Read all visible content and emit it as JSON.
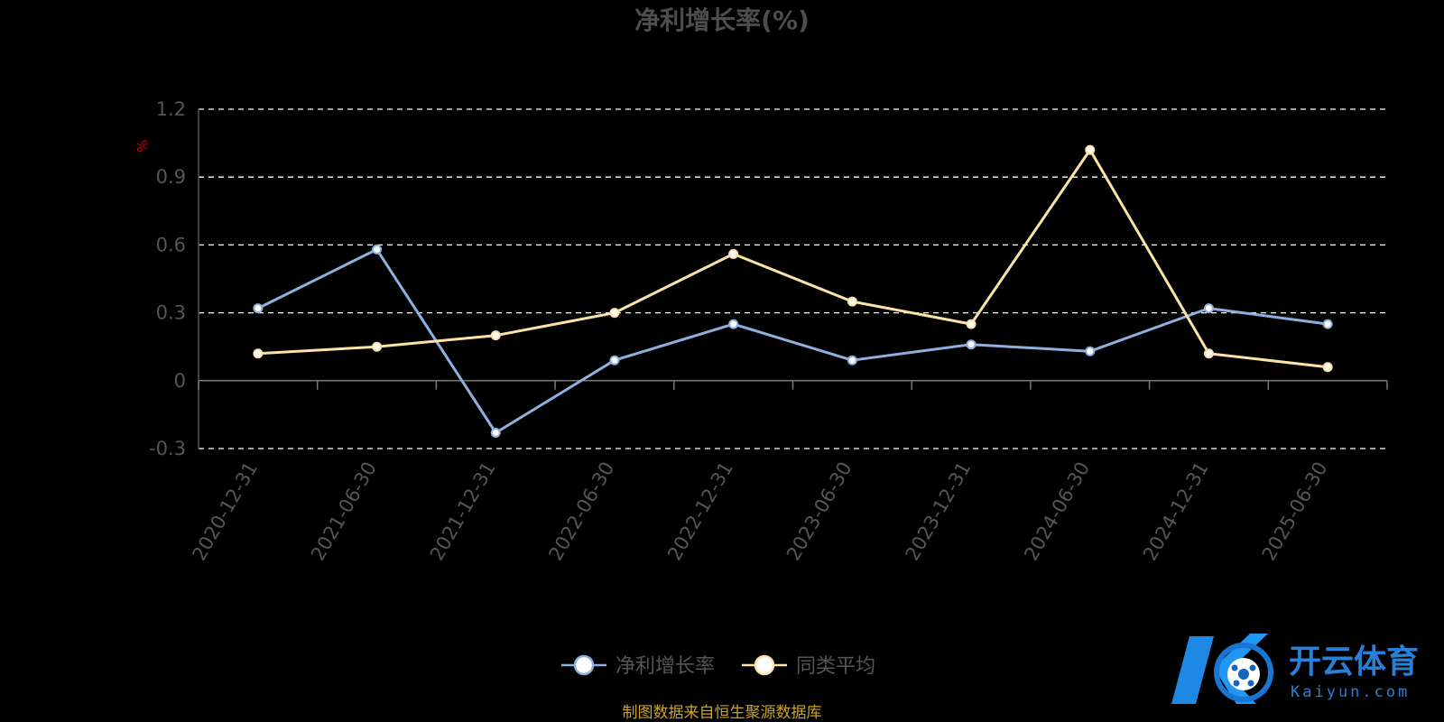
{
  "chart_data": {
    "type": "line",
    "title": "净利增长率(%)",
    "unit_label": "%",
    "categories": [
      "2020-12-31",
      "2021-06-30",
      "2021-12-31",
      "2022-06-30",
      "2022-12-31",
      "2023-06-30",
      "2023-12-31",
      "2024-06-30",
      "2024-12-31",
      "2025-06-30"
    ],
    "series": [
      {
        "name": "净利增长率",
        "color": "#8fb0de",
        "values": [
          0.32,
          0.58,
          -0.23,
          0.09,
          0.25,
          0.09,
          0.16,
          0.13,
          0.32,
          0.25
        ]
      },
      {
        "name": "同类平均",
        "color": "#fde2a6",
        "values": [
          0.12,
          0.15,
          0.2,
          0.3,
          0.56,
          0.35,
          0.25,
          1.02,
          0.12,
          0.06
        ]
      }
    ],
    "ylim": [
      -0.3,
      1.2
    ],
    "yticks": [
      "-0.3",
      "0",
      "0.3",
      "0.6",
      "0.9",
      "1.2"
    ],
    "ytick_values": [
      -0.3,
      0,
      0.3,
      0.6,
      0.9,
      1.2
    ],
    "grid": "dashed-horizontal",
    "legend_position": "bottom-center"
  },
  "source_note": "制图数据来自恒生聚源数据库",
  "watermark": {
    "brand_cn": "开云体育",
    "brand_en": "Kaiyun.com"
  }
}
